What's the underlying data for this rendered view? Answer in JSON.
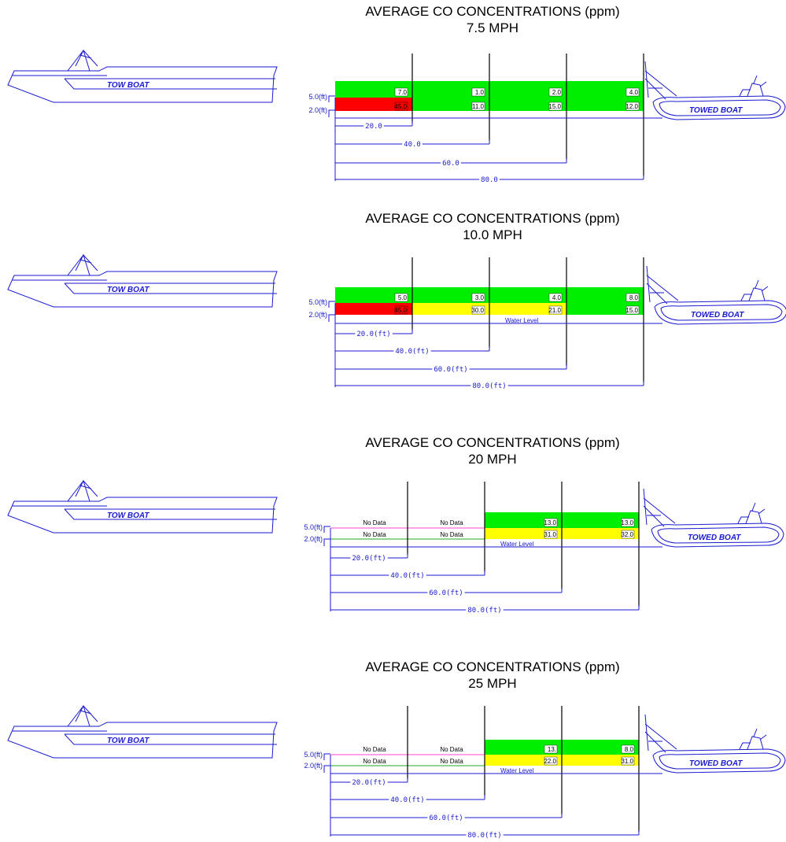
{
  "labels": {
    "tow_boat": "TOW BOAT",
    "towed_boat": "TOWED BOAT",
    "height_upper": "5.0(ft)",
    "height_lower": "2.0(ft)",
    "no_data": "No Data",
    "water_level": "Water Level"
  },
  "colors": {
    "low": "#00ee00",
    "medium": "#ffff00",
    "high": "#ff0000",
    "line": "#1a1ad0",
    "no_data_upper": "#ff44cc",
    "no_data_lower": "#22aa22"
  },
  "panels": [
    {
      "title": "AVERAGE CO CONCENTRATIONS (ppm)",
      "speed": "7.5 MPH",
      "water_level_label": false,
      "distance_labels": [
        "20.0",
        "40.0",
        "60.0",
        "80.0"
      ],
      "upper_values": [
        "7.0",
        "1.0",
        "2.0",
        "4.0"
      ],
      "lower_values": [
        "45.0",
        "11.0",
        "15.0",
        "12.0"
      ],
      "upper_colors": [
        "low",
        "low",
        "low",
        "low"
      ],
      "lower_colors": [
        "high",
        "low",
        "low",
        "low"
      ]
    },
    {
      "title": "AVERAGE CO CONCENTRATIONS (ppm)",
      "speed": "10.0 MPH",
      "water_level_label": true,
      "distance_labels": [
        "20.0(ft)",
        "40.0(ft)",
        "60.0(ft)",
        "80.0(ft)"
      ],
      "upper_values": [
        "5.0",
        "3.0",
        "4.0",
        "8.0"
      ],
      "lower_values": [
        "45.0",
        "30.0",
        "21.0",
        "15.0"
      ],
      "upper_colors": [
        "low",
        "low",
        "low",
        "low"
      ],
      "lower_colors": [
        "high",
        "medium",
        "medium",
        "low"
      ]
    },
    {
      "title": "AVERAGE CO CONCENTRATIONS (ppm)",
      "speed": "20 MPH",
      "water_level_label": true,
      "distance_labels": [
        "20.0(ft)",
        "40.0(ft)",
        "60.0(ft)",
        "80.0(ft)"
      ],
      "upper_values": [
        "No Data",
        "No Data",
        "13.0",
        "13.0"
      ],
      "lower_values": [
        "No Data",
        "No Data",
        "31.0",
        "32.0"
      ],
      "upper_colors": [
        "none",
        "none",
        "low",
        "low"
      ],
      "lower_colors": [
        "none",
        "none",
        "medium",
        "medium"
      ]
    },
    {
      "title": "AVERAGE CO CONCENTRATIONS (ppm)",
      "speed": "25 MPH",
      "water_level_label": true,
      "distance_labels": [
        "20.0(ft)",
        "40.0(ft)",
        "60.0(ft)",
        "80.0(ft)"
      ],
      "upper_values": [
        "No Data",
        "No Data",
        "13.",
        "8.0"
      ],
      "lower_values": [
        "No Data",
        "No Data",
        "22.0",
        "31.0"
      ],
      "upper_colors": [
        "none",
        "none",
        "low",
        "low"
      ],
      "lower_colors": [
        "none",
        "none",
        "medium",
        "medium"
      ]
    }
  ]
}
